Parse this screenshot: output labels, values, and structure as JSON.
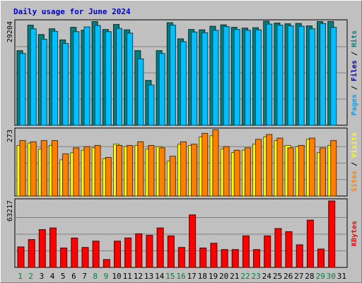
{
  "chart_data": {
    "type": "bar",
    "title": "Daily usage for June 2024",
    "days": [
      "1",
      "2",
      "3",
      "4",
      "5",
      "6",
      "7",
      "8",
      "9",
      "10",
      "11",
      "12",
      "13",
      "14",
      "15",
      "16",
      "17",
      "18",
      "19",
      "20",
      "21",
      "22",
      "23",
      "24",
      "25",
      "26",
      "27",
      "28",
      "29",
      "30",
      "31"
    ],
    "weekend_day_color": "#008040",
    "weekday_day_color": "#000000",
    "panels": [
      {
        "axis_max_label": "29204",
        "ylim": [
          0,
          29204
        ],
        "side_labels": [
          {
            "text": "Pages",
            "color": "#00a0ff"
          },
          {
            "text": " / ",
            "color": "#000000"
          },
          {
            "text": "Files",
            "color": "#0000c0"
          },
          {
            "text": " / ",
            "color": "#000000"
          },
          {
            "text": "Hits",
            "color": "#008080"
          }
        ],
        "series": [
          {
            "name": "Hits",
            "color": "#008080",
            "values": [
              20800,
              27900,
              25300,
              26900,
              23800,
              27300,
              26500,
              28900,
              26700,
              28100,
              26600,
              20800,
              12500,
              20800,
              28600,
              24100,
              26700,
              26600,
              27600,
              28000,
              27300,
              27100,
              27200,
              29000,
              28500,
              28300,
              28400,
              27700,
              28900,
              28900,
              null
            ]
          },
          {
            "name": "Files",
            "color": "#00c0ff",
            "values": [
              20000,
              26900,
              24000,
              26200,
              22800,
              26100,
              27400,
              27800,
              26100,
              27000,
              25700,
              18500,
              11200,
              20000,
              27900,
              23300,
              26000,
              25800,
              26500,
              27500,
              26700,
              26500,
              26600,
              28200,
              27900,
              27700,
              27600,
              26900,
              28400,
              27300,
              null
            ]
          }
        ]
      },
      {
        "axis_max_label": "273",
        "ylim": [
          0,
          273
        ],
        "side_labels": [
          {
            "text": "Sites",
            "color": "#ff8000"
          },
          {
            "text": " / ",
            "color": "#000000"
          },
          {
            "text": "Visits",
            "color": "#ffff00"
          }
        ],
        "series": [
          {
            "name": "Visits",
            "color": "#ffff00",
            "values": [
              210,
              220,
              195,
              210,
              150,
              180,
              190,
              200,
              155,
              215,
              205,
              210,
              195,
              205,
              145,
              215,
              210,
              245,
              250,
              195,
              180,
              190,
              215,
              245,
              230,
              210,
              205,
              235,
              180,
              210,
              null
            ]
          },
          {
            "name": "Sites",
            "color": "#ff8000",
            "values": [
              230,
              225,
              230,
              230,
              175,
              200,
              205,
              210,
              160,
              210,
              210,
              225,
              210,
              200,
              165,
              225,
              215,
              260,
              275,
              205,
              190,
              200,
              235,
              255,
              240,
              200,
              210,
              240,
              200,
              230,
              null
            ]
          }
        ]
      },
      {
        "axis_max_label": "63217",
        "ylim": [
          0,
          63217
        ],
        "side_labels": [
          {
            "text": "KBytes",
            "color": "#ff0000"
          }
        ],
        "series": [
          {
            "name": "KBytes",
            "color": "#ff0000",
            "values": [
              19500,
              26500,
              36000,
              37500,
              18500,
              28000,
              19000,
              25000,
              7500,
              25000,
              28000,
              32000,
              30500,
              37500,
              30000,
              19000,
              50000,
              18500,
              23000,
              17000,
              17000,
              30000,
              17000,
              30000,
              37000,
              34000,
              21500,
              45000,
              17500,
              63217,
              null
            ]
          }
        ]
      }
    ]
  }
}
